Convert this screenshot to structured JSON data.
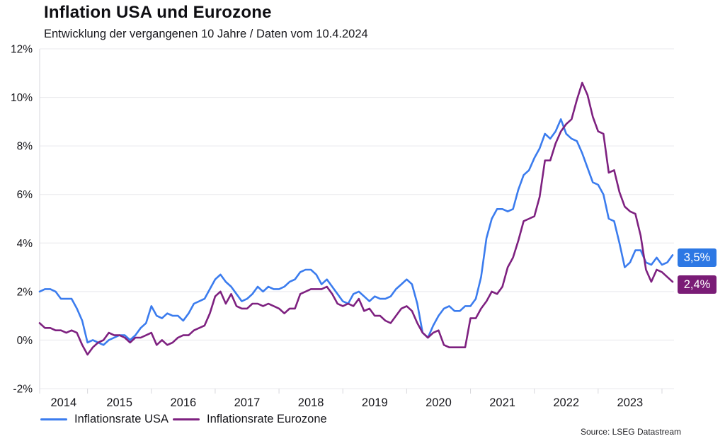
{
  "header": {
    "title": "Inflation USA und Eurozone",
    "subtitle": "Entwicklung der vergangenen 10 Jahre / Daten vom 10.4.2024"
  },
  "footer": {
    "source": "Source: LSEG Datastream"
  },
  "chart_data": {
    "type": "line",
    "title": "Inflation USA und Eurozone",
    "x_unit": "month",
    "x_start": "2014-04",
    "x_end": "2024-03",
    "x_tick_labels": [
      "2014",
      "2015",
      "2016",
      "2017",
      "2018",
      "2019",
      "2020",
      "2021",
      "2022",
      "2023"
    ],
    "ylim": [
      -2,
      12
    ],
    "y_tick_step": 2,
    "y_tick_labels": [
      "12%",
      "10%",
      "8%",
      "6%",
      "4%",
      "2%",
      "0%",
      "-2%"
    ],
    "grid": true,
    "legend_position": "bottom",
    "colors": {
      "grid": "#e8e8ec",
      "axis": "#d7d7dc",
      "text": "#17171c"
    },
    "series": [
      {
        "name": "Inflationsrate USA",
        "color": "#3b7cee",
        "label_bg": "#2d78e4",
        "end_label": "3,5%",
        "values": [
          2.0,
          2.1,
          2.1,
          2.0,
          1.7,
          1.7,
          1.7,
          1.3,
          0.8,
          -0.1,
          0.0,
          -0.1,
          -0.2,
          0.0,
          0.1,
          0.2,
          0.2,
          0.0,
          0.2,
          0.5,
          0.7,
          1.4,
          1.0,
          0.9,
          1.1,
          1.0,
          1.0,
          0.8,
          1.1,
          1.5,
          1.6,
          1.7,
          2.1,
          2.5,
          2.7,
          2.4,
          2.2,
          1.9,
          1.6,
          1.7,
          1.9,
          2.2,
          2.0,
          2.2,
          2.1,
          2.1,
          2.2,
          2.4,
          2.5,
          2.8,
          2.9,
          2.9,
          2.7,
          2.3,
          2.5,
          2.2,
          1.9,
          1.6,
          1.5,
          1.9,
          2.0,
          1.8,
          1.6,
          1.8,
          1.7,
          1.7,
          1.8,
          2.1,
          2.3,
          2.5,
          2.3,
          1.5,
          0.3,
          0.1,
          0.6,
          1.0,
          1.3,
          1.4,
          1.2,
          1.2,
          1.4,
          1.4,
          1.7,
          2.6,
          4.2,
          5.0,
          5.4,
          5.4,
          5.3,
          5.4,
          6.2,
          6.8,
          7.0,
          7.5,
          7.9,
          8.5,
          8.3,
          8.6,
          9.1,
          8.5,
          8.3,
          8.2,
          7.7,
          7.1,
          6.5,
          6.4,
          6.0,
          5.0,
          4.9,
          4.0,
          3.0,
          3.2,
          3.7,
          3.7,
          3.2,
          3.1,
          3.4,
          3.1,
          3.2,
          3.5
        ]
      },
      {
        "name": "Inflationsrate Eurozone",
        "color": "#7e2180",
        "label_bg": "#7a1c76",
        "end_label": "2,4%",
        "values": [
          0.7,
          0.5,
          0.5,
          0.4,
          0.4,
          0.3,
          0.4,
          0.3,
          -0.2,
          -0.6,
          -0.3,
          -0.1,
          0.0,
          0.3,
          0.2,
          0.2,
          0.1,
          -0.1,
          0.1,
          0.1,
          0.2,
          0.3,
          -0.2,
          0.0,
          -0.2,
          -0.1,
          0.1,
          0.2,
          0.2,
          0.4,
          0.5,
          0.6,
          1.1,
          1.8,
          2.0,
          1.5,
          1.9,
          1.4,
          1.3,
          1.3,
          1.5,
          1.5,
          1.4,
          1.5,
          1.4,
          1.3,
          1.1,
          1.3,
          1.3,
          1.9,
          2.0,
          2.1,
          2.1,
          2.1,
          2.2,
          1.9,
          1.5,
          1.4,
          1.5,
          1.4,
          1.7,
          1.2,
          1.3,
          1.0,
          1.0,
          0.8,
          0.7,
          1.0,
          1.3,
          1.4,
          1.2,
          0.7,
          0.3,
          0.1,
          0.3,
          0.4,
          -0.2,
          -0.3,
          -0.3,
          -0.3,
          -0.3,
          0.9,
          0.9,
          1.3,
          1.6,
          2.0,
          1.9,
          2.2,
          3.0,
          3.4,
          4.1,
          4.9,
          5.0,
          5.1,
          5.9,
          7.4,
          7.4,
          8.1,
          8.6,
          8.9,
          9.1,
          9.9,
          10.6,
          10.1,
          9.2,
          8.6,
          8.5,
          6.9,
          7.0,
          6.1,
          5.5,
          5.3,
          5.2,
          4.3,
          2.9,
          2.4,
          2.9,
          2.8,
          2.6,
          2.4
        ]
      }
    ]
  }
}
